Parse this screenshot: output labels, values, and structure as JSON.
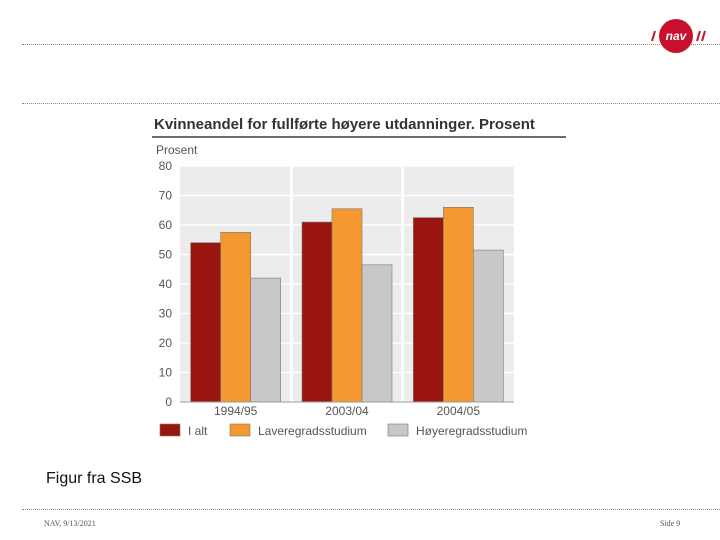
{
  "logo": {
    "text": "nav",
    "color": "#c8102e"
  },
  "caption": "Figur fra SSB",
  "footer": {
    "left": "NAV, 9/13/2021",
    "right": "Side 9"
  },
  "chart_data": {
    "type": "bar",
    "title": "Kvinneandel for fullførte høyere utdanninger. Prosent",
    "ylabel": "Prosent",
    "xlabel": "",
    "ylim": [
      0,
      80
    ],
    "yticks": [
      0,
      10,
      20,
      30,
      40,
      50,
      60,
      70,
      80
    ],
    "grid": true,
    "legend": "bottom",
    "categories": [
      "1994/95",
      "2003/04",
      "2004/05"
    ],
    "series": [
      {
        "name": "I alt",
        "color": "#9b1510",
        "values": [
          54,
          61,
          62.5
        ]
      },
      {
        "name": "Laveregradsstudium",
        "color": "#f4982f",
        "values": [
          57.5,
          65.5,
          66
        ]
      },
      {
        "name": "Høyeregradsstudium",
        "color": "#c8c8c8",
        "values": [
          42,
          46.5,
          51.5
        ]
      }
    ]
  }
}
